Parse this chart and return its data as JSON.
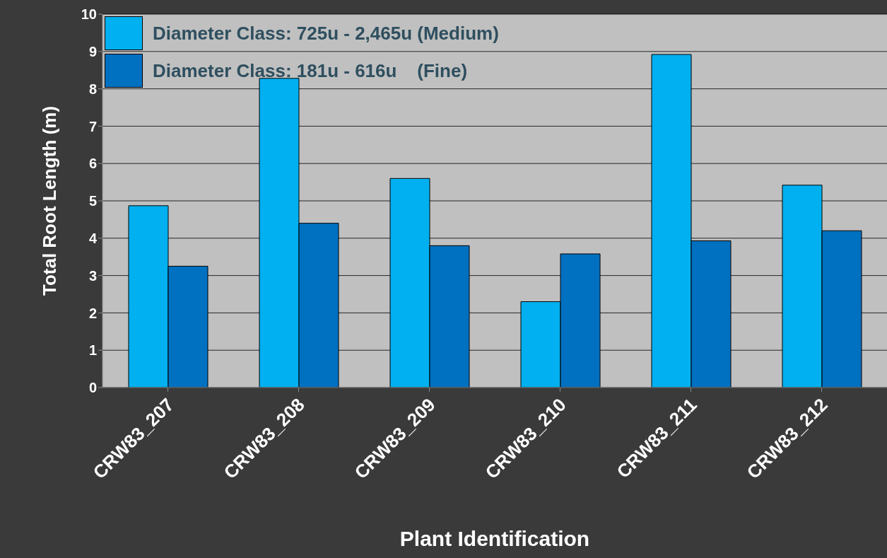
{
  "chart_data": {
    "type": "bar",
    "xlabel": "Plant Identification",
    "ylabel": "Total Root Length (m)",
    "categories": [
      "CRW83_207",
      "CRW83_208",
      "CRW83_209",
      "CRW83_210",
      "CRW83_211",
      "CRW83_212"
    ],
    "series": [
      {
        "name": "Diameter Class: 725u - 2,465u (Medium)",
        "color": "#00b0f0",
        "values": [
          4.87,
          8.28,
          5.6,
          2.3,
          8.92,
          5.42
        ]
      },
      {
        "name": "Diameter Class: 181u - 616u    (Fine)",
        "color": "#0070c0",
        "values": [
          3.25,
          4.4,
          3.8,
          3.58,
          3.93,
          4.2
        ]
      }
    ],
    "ylim": [
      0,
      10
    ],
    "yticks": [
      0,
      1,
      2,
      3,
      4,
      5,
      6,
      7,
      8,
      9,
      10
    ],
    "grid": "y",
    "legend": "top left"
  }
}
